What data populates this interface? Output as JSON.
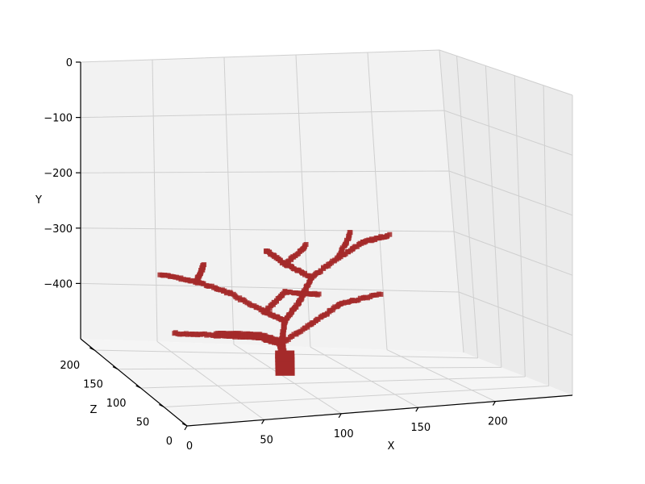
{
  "chart_data": {
    "type": "scatter",
    "projection": "3d",
    "xlabel": "X",
    "ylabel": "Y",
    "zlabel": "Z",
    "x_ticks": [
      "0",
      "50",
      "100",
      "150",
      "200"
    ],
    "y_ticks": [
      "0",
      "−100",
      "−200",
      "−300",
      "−400"
    ],
    "z_ticks": [
      "0",
      "50",
      "100",
      "150",
      "200"
    ],
    "xlim": [
      0,
      250
    ],
    "ylim": [
      -500,
      0
    ],
    "zlim": [
      0,
      230
    ],
    "grid": true,
    "marker_color": "#a52a2a",
    "description_of_points": "dense voxel point cloud forming a branching tree/coral structure rising from a trunk near x~100, z~120, y~-490 up to y~-280",
    "branches": [
      {
        "from": [
          100,
          -490,
          120
        ],
        "to": [
          98,
          -440,
          120
        ]
      },
      {
        "from": [
          98,
          -440,
          120
        ],
        "to": [
          80,
          -420,
          110
        ]
      },
      {
        "from": [
          80,
          -420,
          110
        ],
        "to": [
          50,
          -410,
          100
        ]
      },
      {
        "from": [
          50,
          -410,
          100
        ],
        "to": [
          20,
          -400,
          95
        ]
      },
      {
        "from": [
          98,
          -440,
          120
        ],
        "to": [
          120,
          -410,
          125
        ]
      },
      {
        "from": [
          120,
          -410,
          125
        ],
        "to": [
          140,
          -380,
          130
        ]
      },
      {
        "from": [
          140,
          -380,
          130
        ],
        "to": [
          170,
          -370,
          140
        ]
      },
      {
        "from": [
          98,
          -440,
          120
        ],
        "to": [
          100,
          -400,
          118
        ]
      },
      {
        "from": [
          100,
          -400,
          118
        ],
        "to": [
          85,
          -380,
          112
        ]
      },
      {
        "from": [
          85,
          -380,
          112
        ],
        "to": [
          60,
          -340,
          105
        ]
      },
      {
        "from": [
          60,
          -340,
          105
        ],
        "to": [
          35,
          -310,
          95
        ]
      },
      {
        "from": [
          35,
          -310,
          95
        ],
        "to": [
          10,
          -290,
          90
        ]
      },
      {
        "from": [
          35,
          -310,
          95
        ],
        "to": [
          40,
          -280,
          95
        ]
      },
      {
        "from": [
          100,
          -400,
          118
        ],
        "to": [
          110,
          -370,
          120
        ]
      },
      {
        "from": [
          110,
          -370,
          120
        ],
        "to": [
          120,
          -330,
          125
        ]
      },
      {
        "from": [
          120,
          -330,
          125
        ],
        "to": [
          140,
          -300,
          130
        ]
      },
      {
        "from": [
          140,
          -300,
          130
        ],
        "to": [
          160,
          -280,
          140
        ]
      },
      {
        "from": [
          160,
          -280,
          140
        ],
        "to": [
          180,
          -275,
          150
        ]
      },
      {
        "from": [
          140,
          -300,
          130
        ],
        "to": [
          150,
          -260,
          135
        ]
      },
      {
        "from": [
          120,
          -330,
          125
        ],
        "to": [
          100,
          -300,
          115
        ]
      },
      {
        "from": [
          100,
          -300,
          115
        ],
        "to": [
          85,
          -270,
          108
        ]
      },
      {
        "from": [
          100,
          -300,
          115
        ],
        "to": [
          115,
          -270,
          118
        ]
      },
      {
        "from": [
          85,
          -380,
          112
        ],
        "to": [
          100,
          -350,
          118
        ]
      },
      {
        "from": [
          100,
          -350,
          118
        ],
        "to": [
          125,
          -360,
          125
        ]
      }
    ]
  }
}
